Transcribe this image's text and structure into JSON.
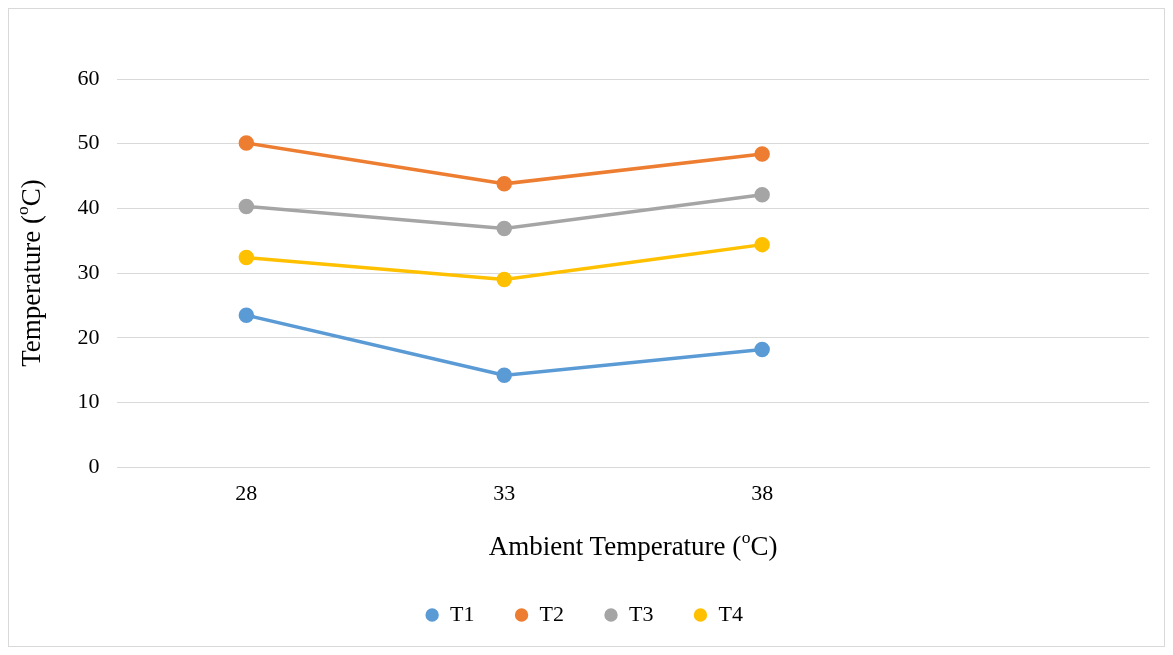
{
  "chart_data": {
    "type": "line",
    "xlabel": "Ambient Temperature ($^{o}$C)",
    "ylabel": "Temperature ($^{o}$C)",
    "categories": [
      "28",
      "33",
      "38",
      null
    ],
    "series": [
      {
        "name": "T1",
        "color": "#5b9bd5",
        "values": [
          23.5,
          14.2,
          18.2,
          null
        ]
      },
      {
        "name": "T2",
        "color": "#ed7d31",
        "values": [
          50.1,
          43.8,
          48.4,
          null
        ]
      },
      {
        "name": "T3",
        "color": "#a5a5a5",
        "values": [
          40.3,
          36.9,
          42.1,
          null
        ]
      },
      {
        "name": "T4",
        "color": "#ffc000",
        "values": [
          32.4,
          29.0,
          34.4,
          null
        ]
      }
    ],
    "ylim": [
      0,
      60
    ],
    "yticks": [
      0,
      10,
      20,
      30,
      40,
      50,
      60
    ],
    "grid": "y",
    "legend": "bottom",
    "marker": "circle",
    "line_style": "solid"
  }
}
